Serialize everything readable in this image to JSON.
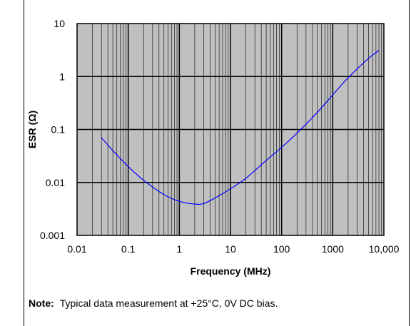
{
  "chart_data": {
    "type": "line",
    "xscale": "log",
    "yscale": "log",
    "xlim": [
      0.01,
      10000
    ],
    "ylim": [
      0.001,
      10
    ],
    "xlabel": "Frequency (MHz)",
    "ylabel": "ESR (Ω)",
    "x_ticks": [
      "0.01",
      "0.1",
      "1",
      "10",
      "100",
      "1000",
      "10,000"
    ],
    "y_ticks": [
      "10",
      "1",
      "0.1",
      "0.01",
      "0.001"
    ],
    "grid": true,
    "plot_bg": "#c0c0c0",
    "series": [
      {
        "color": "#0000ff",
        "x": [
          0.03,
          0.05,
          0.1,
          0.2,
          0.5,
          1,
          2,
          3,
          5,
          10,
          20,
          50,
          100,
          200,
          500,
          1000,
          2000,
          5000,
          8000
        ],
        "y": [
          0.07,
          0.04,
          0.02,
          0.011,
          0.0059,
          0.0044,
          0.0039,
          0.004,
          0.0051,
          0.0076,
          0.012,
          0.026,
          0.046,
          0.085,
          0.21,
          0.45,
          0.95,
          2.2,
          3.1
        ]
      }
    ]
  },
  "note": {
    "label": "Note:",
    "text": "Typical data measurement at +25°C, 0V DC bias."
  }
}
